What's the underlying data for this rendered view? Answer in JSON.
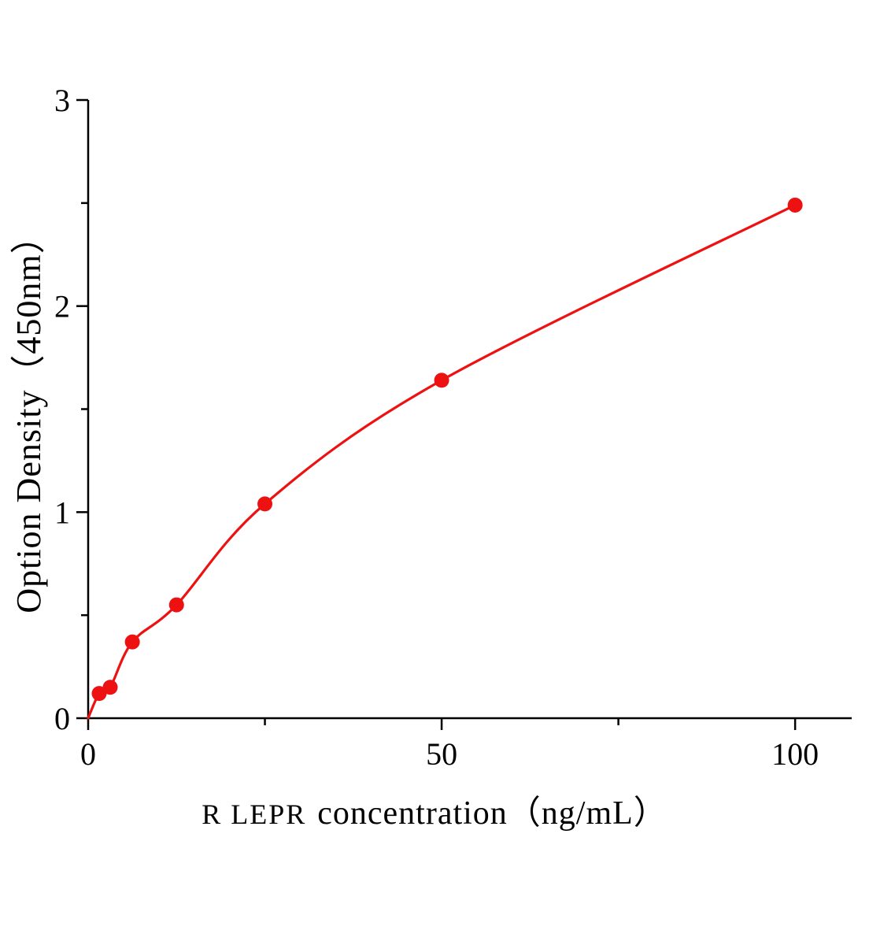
{
  "figure": {
    "background": "#ffffff"
  },
  "chart_data": {
    "type": "line",
    "title": "",
    "xlabel": "R LEPR  concentration（ng/mL）",
    "xlabel_prefix": "R LEPR",
    "xlabel_main": "concentration（ng/mL）",
    "ylabel": "Option Density（450nm）",
    "x": [
      1.56,
      3.12,
      6.25,
      12.5,
      25,
      50,
      100
    ],
    "y": [
      0.12,
      0.15,
      0.37,
      0.55,
      1.04,
      1.64,
      2.49
    ],
    "curve_start": {
      "x": 0,
      "y": 0
    },
    "xlim": [
      0,
      108
    ],
    "ylim": [
      0,
      3
    ],
    "x_major_ticks": [
      0,
      50,
      100
    ],
    "x_minor_ticks": [
      25,
      75
    ],
    "y_major_ticks": [
      0,
      1,
      2,
      3
    ],
    "y_minor_ticks": [
      0.5,
      1.5,
      2.5
    ],
    "x_tick_labels": [
      "0",
      "50",
      "100"
    ],
    "y_tick_labels": [
      "0",
      "1",
      "2",
      "3"
    ],
    "grid": false,
    "legend": null,
    "line_color": "#ee1111",
    "marker_color": "#ee1111",
    "marker": "circle",
    "axis_color": "#000000"
  }
}
